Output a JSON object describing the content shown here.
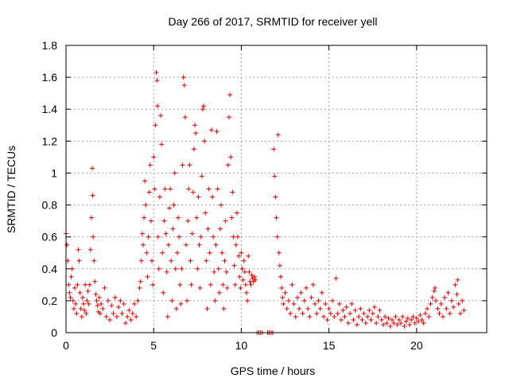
{
  "chart_data": {
    "type": "scatter",
    "title": "Day 266 of 2017, SRMTID for receiver yell",
    "xlabel": "GPS time / hours",
    "ylabel": "SRMTID / TECUs",
    "xlim": [
      0,
      24
    ],
    "ylim": [
      0,
      1.8
    ],
    "xticks": [
      0,
      5,
      10,
      15,
      20
    ],
    "yticks": [
      0,
      0.2,
      0.4,
      0.6,
      0.8,
      1,
      1.2,
      1.4,
      1.6,
      1.8
    ],
    "ytick_labels": [
      "0",
      "0.2",
      "0.4",
      "0.6",
      "0.8",
      "1",
      "1.2",
      "1.4",
      "1.6",
      "1.8"
    ],
    "marker": "+",
    "color": "#e00000",
    "grid": true,
    "series": [
      {
        "name": "SRMTID",
        "points": [
          [
            0.0,
            0.62
          ],
          [
            0.05,
            0.55
          ],
          [
            0.1,
            0.45
          ],
          [
            0.15,
            0.3
          ],
          [
            0.2,
            0.25
          ],
          [
            0.25,
            0.22
          ],
          [
            0.3,
            0.35
          ],
          [
            0.35,
            0.4
          ],
          [
            0.4,
            0.2
          ],
          [
            0.45,
            0.15
          ],
          [
            0.5,
            0.28
          ],
          [
            0.55,
            0.18
          ],
          [
            0.6,
            0.12
          ],
          [
            0.65,
            0.3
          ],
          [
            0.7,
            0.52
          ],
          [
            0.75,
            0.45
          ],
          [
            0.8,
            0.25
          ],
          [
            0.85,
            0.15
          ],
          [
            0.9,
            0.1
          ],
          [
            0.95,
            0.22
          ],
          [
            1.0,
            0.18
          ],
          [
            1.05,
            0.14
          ],
          [
            1.1,
            0.3
          ],
          [
            1.15,
            0.12
          ],
          [
            1.2,
            0.2
          ],
          [
            1.25,
            0.26
          ],
          [
            1.3,
            0.18
          ],
          [
            1.35,
            0.3
          ],
          [
            1.4,
            0.52
          ],
          [
            1.45,
            0.72
          ],
          [
            1.5,
            1.03
          ],
          [
            1.52,
            0.86
          ],
          [
            1.55,
            0.6
          ],
          [
            1.6,
            0.45
          ],
          [
            1.65,
            0.32
          ],
          [
            1.7,
            0.24
          ],
          [
            1.75,
            0.2
          ],
          [
            1.8,
            0.17
          ],
          [
            1.85,
            0.13
          ],
          [
            1.9,
            0.22
          ],
          [
            1.95,
            0.12
          ],
          [
            2.0,
            0.18
          ],
          [
            2.1,
            0.15
          ],
          [
            2.2,
            0.28
          ],
          [
            2.3,
            0.1
          ],
          [
            2.4,
            0.2
          ],
          [
            2.5,
            0.08
          ],
          [
            2.6,
            0.17
          ],
          [
            2.7,
            0.12
          ],
          [
            2.8,
            0.22
          ],
          [
            2.9,
            0.1
          ],
          [
            3.0,
            0.16
          ],
          [
            3.1,
            0.2
          ],
          [
            3.2,
            0.12
          ],
          [
            3.3,
            0.18
          ],
          [
            3.4,
            0.06
          ],
          [
            3.5,
            0.1
          ],
          [
            3.6,
            0.14
          ],
          [
            3.7,
            0.08
          ],
          [
            3.8,
            0.12
          ],
          [
            3.9,
            0.18
          ],
          [
            4.0,
            0.1
          ],
          [
            4.1,
            0.2
          ],
          [
            4.2,
            0.28
          ],
          [
            4.25,
            0.32
          ],
          [
            4.3,
            0.45
          ],
          [
            4.35,
            0.62
          ],
          [
            4.4,
            0.55
          ],
          [
            4.45,
            0.72
          ],
          [
            4.5,
            0.95
          ],
          [
            4.55,
            0.8
          ],
          [
            4.6,
            0.5
          ],
          [
            4.65,
            0.35
          ],
          [
            4.7,
            0.6
          ],
          [
            4.75,
            0.88
          ],
          [
            4.8,
            1.05
          ],
          [
            4.85,
            0.7
          ],
          [
            4.9,
            0.45
          ],
          [
            4.95,
            0.3
          ],
          [
            5.0,
            1.1
          ],
          [
            5.05,
            0.9
          ],
          [
            5.1,
            1.3
          ],
          [
            5.15,
            1.63
          ],
          [
            5.2,
            1.58
          ],
          [
            5.22,
            1.42
          ],
          [
            5.25,
            0.6
          ],
          [
            5.3,
            0.4
          ],
          [
            5.35,
            0.85
          ],
          [
            5.4,
            1.36
          ],
          [
            5.45,
            1.18
          ],
          [
            5.5,
            0.5
          ],
          [
            5.55,
            0.25
          ],
          [
            5.6,
            0.7
          ],
          [
            5.65,
            0.9
          ],
          [
            5.7,
            0.62
          ],
          [
            5.75,
            0.38
          ],
          [
            5.8,
            0.1
          ],
          [
            5.85,
            0.55
          ],
          [
            5.9,
            0.78
          ],
          [
            5.95,
            0.9
          ],
          [
            6.0,
            0.45
          ],
          [
            6.05,
            0.2
          ],
          [
            6.1,
            0.65
          ],
          [
            6.15,
            0.8
          ],
          [
            6.2,
            1.0
          ],
          [
            6.25,
            0.4
          ],
          [
            6.3,
            0.15
          ],
          [
            6.35,
            0.5
          ],
          [
            6.4,
            0.72
          ],
          [
            6.45,
            0.6
          ],
          [
            6.5,
            0.3
          ],
          [
            6.55,
            0.18
          ],
          [
            6.6,
            0.4
          ],
          [
            6.65,
            1.05
          ],
          [
            6.7,
            1.6
          ],
          [
            6.75,
            1.55
          ],
          [
            6.8,
            1.35
          ],
          [
            6.85,
            0.55
          ],
          [
            6.9,
            0.2
          ],
          [
            6.95,
            0.7
          ],
          [
            7.0,
            0.9
          ],
          [
            7.05,
            1.05
          ],
          [
            7.1,
            0.45
          ],
          [
            7.15,
            0.3
          ],
          [
            7.2,
            0.62
          ],
          [
            7.25,
            0.88
          ],
          [
            7.3,
            1.15
          ],
          [
            7.35,
            1.3
          ],
          [
            7.4,
            1.25
          ],
          [
            7.45,
            0.72
          ],
          [
            7.5,
            0.4
          ],
          [
            7.55,
            0.85
          ],
          [
            7.6,
            0.55
          ],
          [
            7.65,
            0.28
          ],
          [
            7.7,
            0.6
          ],
          [
            7.75,
            0.98
          ],
          [
            7.8,
            1.4
          ],
          [
            7.85,
            1.42
          ],
          [
            7.9,
            1.2
          ],
          [
            7.95,
            0.75
          ],
          [
            8.0,
            0.45
          ],
          [
            8.05,
            0.15
          ],
          [
            8.1,
            0.65
          ],
          [
            8.15,
            0.9
          ],
          [
            8.2,
            0.5
          ],
          [
            8.25,
            0.3
          ],
          [
            8.3,
            1.27
          ],
          [
            8.35,
            0.85
          ],
          [
            8.4,
            0.6
          ],
          [
            8.45,
            0.38
          ],
          [
            8.5,
            0.2
          ],
          [
            8.55,
            0.55
          ],
          [
            8.6,
            1.26
          ],
          [
            8.65,
            0.9
          ],
          [
            8.7,
            0.4
          ],
          [
            8.75,
            0.25
          ],
          [
            8.8,
            0.65
          ],
          [
            8.85,
            0.8
          ],
          [
            8.9,
            0.5
          ],
          [
            8.95,
            0.3
          ],
          [
            9.0,
            0.15
          ],
          [
            9.05,
            0.45
          ],
          [
            9.1,
            0.7
          ],
          [
            9.15,
            0.38
          ],
          [
            9.2,
            0.28
          ],
          [
            9.25,
            1.05
          ],
          [
            9.3,
            1.35
          ],
          [
            9.35,
            1.49
          ],
          [
            9.4,
            1.1
          ],
          [
            9.45,
            0.72
          ],
          [
            9.5,
            0.88
          ],
          [
            9.55,
            0.6
          ],
          [
            9.6,
            0.42
          ],
          [
            9.65,
            0.3
          ],
          [
            9.7,
            0.55
          ],
          [
            9.75,
            0.75
          ],
          [
            9.8,
            0.6
          ],
          [
            9.85,
            0.48
          ],
          [
            9.9,
            0.35
          ],
          [
            9.95,
            0.28
          ],
          [
            10.0,
            0.5
          ],
          [
            10.05,
            0.4
          ],
          [
            10.1,
            0.33
          ],
          [
            10.15,
            0.45
          ],
          [
            10.2,
            0.38
          ],
          [
            10.25,
            0.3
          ],
          [
            10.3,
            0.25
          ],
          [
            10.35,
            0.2
          ],
          [
            10.4,
            0.48
          ],
          [
            10.45,
            0.38
          ],
          [
            10.5,
            0.32
          ],
          [
            10.55,
            0.3
          ],
          [
            10.6,
            0.36
          ],
          [
            10.65,
            0.34
          ],
          [
            10.7,
            0.32
          ],
          [
            10.75,
            0.35
          ],
          [
            10.8,
            0.33
          ],
          [
            10.9,
            0.0
          ],
          [
            11.0,
            0.0
          ],
          [
            11.1,
            0.0
          ],
          [
            11.2,
            0.0
          ],
          [
            11.5,
            0.0
          ],
          [
            11.6,
            0.0
          ],
          [
            11.7,
            0.0
          ],
          [
            11.8,
            0.0
          ],
          [
            11.85,
            1.15
          ],
          [
            11.9,
            0.98
          ],
          [
            11.95,
            0.85
          ],
          [
            12.0,
            0.72
          ],
          [
            12.05,
            0.6
          ],
          [
            12.1,
            1.24
          ],
          [
            12.15,
            0.5
          ],
          [
            12.2,
            0.42
          ],
          [
            12.25,
            0.35
          ],
          [
            12.3,
            0.28
          ],
          [
            12.35,
            0.22
          ],
          [
            12.4,
            0.18
          ],
          [
            12.5,
            0.25
          ],
          [
            12.6,
            0.15
          ],
          [
            12.7,
            0.2
          ],
          [
            12.8,
            0.12
          ],
          [
            12.9,
            0.3
          ],
          [
            13.0,
            0.18
          ],
          [
            13.1,
            0.1
          ],
          [
            13.2,
            0.22
          ],
          [
            13.3,
            0.15
          ],
          [
            13.4,
            0.25
          ],
          [
            13.5,
            0.12
          ],
          [
            13.6,
            0.2
          ],
          [
            13.7,
            0.28
          ],
          [
            13.8,
            0.15
          ],
          [
            13.9,
            0.1
          ],
          [
            14.0,
            0.22
          ],
          [
            14.1,
            0.3
          ],
          [
            14.2,
            0.18
          ],
          [
            14.3,
            0.12
          ],
          [
            14.4,
            0.2
          ],
          [
            14.5,
            0.15
          ],
          [
            14.6,
            0.25
          ],
          [
            14.7,
            0.1
          ],
          [
            14.8,
            0.18
          ],
          [
            14.9,
            0.08
          ],
          [
            15.0,
            0.15
          ],
          [
            15.1,
            0.12
          ],
          [
            15.2,
            0.2
          ],
          [
            15.3,
            0.1
          ],
          [
            15.4,
            0.34
          ],
          [
            15.5,
            0.12
          ],
          [
            15.6,
            0.18
          ],
          [
            15.7,
            0.08
          ],
          [
            15.8,
            0.14
          ],
          [
            15.9,
            0.1
          ],
          [
            16.0,
            0.16
          ],
          [
            16.1,
            0.06
          ],
          [
            16.2,
            0.12
          ],
          [
            16.3,
            0.18
          ],
          [
            16.4,
            0.08
          ],
          [
            16.5,
            0.14
          ],
          [
            16.6,
            0.05
          ],
          [
            16.7,
            0.1
          ],
          [
            16.8,
            0.15
          ],
          [
            16.9,
            0.08
          ],
          [
            17.0,
            0.12
          ],
          [
            17.1,
            0.06
          ],
          [
            17.2,
            0.1
          ],
          [
            17.3,
            0.14
          ],
          [
            17.4,
            0.08
          ],
          [
            17.5,
            0.12
          ],
          [
            17.6,
            0.16
          ],
          [
            17.7,
            0.06
          ],
          [
            17.8,
            0.1
          ],
          [
            17.9,
            0.14
          ],
          [
            18.0,
            0.08
          ],
          [
            18.1,
            0.05
          ],
          [
            18.2,
            0.1
          ],
          [
            18.3,
            0.06
          ],
          [
            18.4,
            0.09
          ],
          [
            18.5,
            0.04
          ],
          [
            18.6,
            0.08
          ],
          [
            18.7,
            0.06
          ],
          [
            18.8,
            0.1
          ],
          [
            18.9,
            0.05
          ],
          [
            19.0,
            0.08
          ],
          [
            19.1,
            0.06
          ],
          [
            19.2,
            0.1
          ],
          [
            19.3,
            0.04
          ],
          [
            19.4,
            0.07
          ],
          [
            19.5,
            0.09
          ],
          [
            19.6,
            0.05
          ],
          [
            19.7,
            0.08
          ],
          [
            19.8,
            0.1
          ],
          [
            19.9,
            0.06
          ],
          [
            20.0,
            0.09
          ],
          [
            20.1,
            0.07
          ],
          [
            20.2,
            0.11
          ],
          [
            20.3,
            0.08
          ],
          [
            20.4,
            0.06
          ],
          [
            20.5,
            0.12
          ],
          [
            20.6,
            0.15
          ],
          [
            20.7,
            0.1
          ],
          [
            20.8,
            0.18
          ],
          [
            20.9,
            0.22
          ],
          [
            21.0,
            0.26
          ],
          [
            21.05,
            0.28
          ],
          [
            21.1,
            0.2
          ],
          [
            21.2,
            0.15
          ],
          [
            21.3,
            0.12
          ],
          [
            21.4,
            0.18
          ],
          [
            21.5,
            0.1
          ],
          [
            21.6,
            0.22
          ],
          [
            21.7,
            0.15
          ],
          [
            21.8,
            0.25
          ],
          [
            21.9,
            0.12
          ],
          [
            22.0,
            0.2
          ],
          [
            22.1,
            0.16
          ],
          [
            22.2,
            0.3
          ],
          [
            22.3,
            0.24
          ],
          [
            22.35,
            0.33
          ],
          [
            22.4,
            0.18
          ],
          [
            22.5,
            0.12
          ],
          [
            22.6,
            0.2
          ],
          [
            22.7,
            0.14
          ]
        ]
      }
    ]
  }
}
